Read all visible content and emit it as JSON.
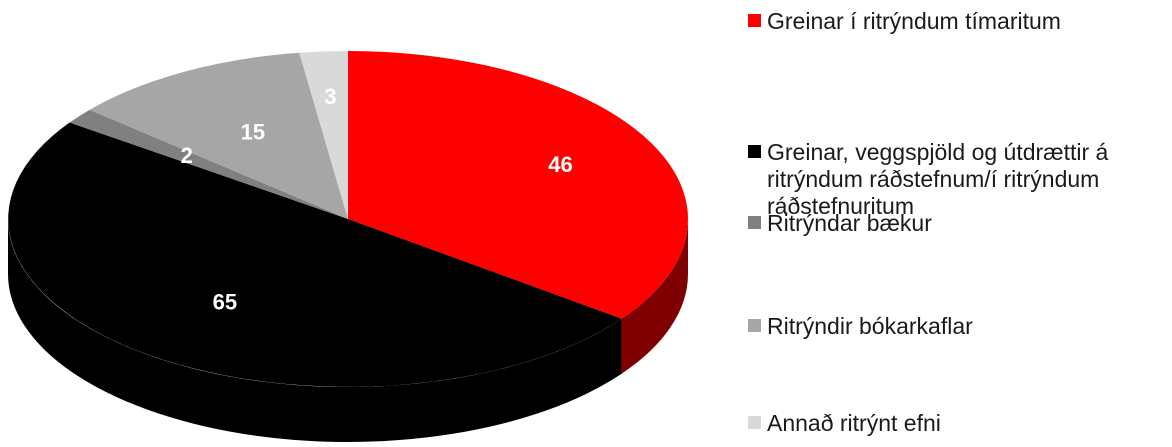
{
  "chart_data": {
    "type": "pie",
    "title": "",
    "categories": [
      "Greinar í ritrýndum tímaritum",
      "Greinar, veggspjöld og útdrættir á ritrýndum ráðstefnum/í ritrýndum ráðstefnuritum",
      "Ritrýndar bækur",
      "Ritrýndir bókarkaflar",
      "Annað ritrýnt efni"
    ],
    "values": [
      46,
      65,
      2,
      15,
      3
    ],
    "value_labels": [
      "46",
      "65",
      "2",
      "15",
      "3"
    ],
    "colors": [
      "#ff0000",
      "#000000",
      "#808080",
      "#a6a6a6",
      "#d9d9d9"
    ],
    "side_colors": [
      "#7f0000",
      "#000000",
      "#404040",
      "#535353",
      "#6c6c6c"
    ],
    "label_colors": [
      "#ffffff",
      "#ffffff",
      "#ffffff",
      "#ffffff",
      "#ffffff"
    ],
    "style": "3d",
    "legend_position": "right"
  }
}
